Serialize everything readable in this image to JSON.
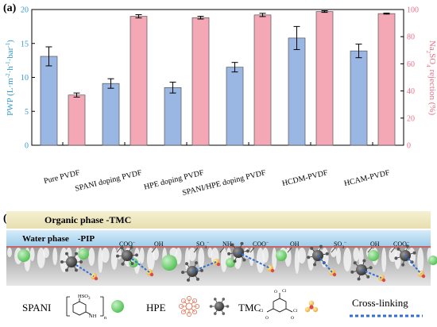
{
  "panel_a": {
    "label": "(a)",
    "chart_data": {
      "type": "bar",
      "categories": [
        "Pure PVDF",
        "SPANI doping PVDF",
        "HPE doping PVDF",
        "SPANI/HPE doping PVDF",
        "HCDM-PVDF",
        "HCAM-PVDF"
      ],
      "y_left": {
        "label_parts": [
          "PWP (L·m",
          "-2",
          "·h",
          "-1",
          "·bar",
          "-1",
          ")"
        ],
        "ylim": [
          0,
          20
        ],
        "ticks": [
          0,
          5,
          10,
          15,
          20
        ],
        "color": "#3399cc"
      },
      "y_right": {
        "label_parts": [
          "Na",
          "2",
          "SO",
          "4",
          " rejection (%)"
        ],
        "ylim": [
          0,
          100
        ],
        "ticks": [
          0,
          20,
          40,
          60,
          80,
          100
        ],
        "color": "#e8708a"
      },
      "series": [
        {
          "axis": "left",
          "values": [
            13.1,
            9.1,
            8.5,
            11.5,
            15.8,
            13.9
          ],
          "errors": [
            1.4,
            0.7,
            0.8,
            0.7,
            1.7,
            1.0
          ],
          "color": "#9ab7e3"
        },
        {
          "axis": "right",
          "values": [
            37,
            95,
            94,
            96,
            98.5,
            97
          ],
          "errors": [
            1.5,
            1.2,
            1.0,
            1.2,
            0.6,
            0.4
          ],
          "color": "#f4a7b4"
        }
      ]
    }
  },
  "panel_b": {
    "label": "(b)",
    "organic_phase": "Organic phase -TMC",
    "water_phase": "Water phase    -PIP",
    "groups": [
      {
        "text": "COO",
        "sup": "−"
      },
      {
        "text": "OH",
        "sup": ""
      },
      {
        "text": "SO",
        "sup": "−",
        "sub": "3"
      },
      {
        "text": "NH",
        "sup": ""
      },
      {
        "text": "COO",
        "sup": "−"
      },
      {
        "text": "OH",
        "sup": ""
      },
      {
        "text": "SO",
        "sup": "−",
        "sub": "3"
      },
      {
        "text": "OH",
        "sup": ""
      },
      {
        "text": "COO",
        "sup": "−"
      }
    ],
    "legend": {
      "spani": "SPANI",
      "spani_formula": {
        "so3h": "HSO",
        "so3h_sub": "3",
        "nh": "NH",
        "n": "n"
      },
      "hpe": "HPE",
      "tmc": "TMC",
      "tmc_atoms": {
        "cl": "Cl",
        "o": "O"
      },
      "crosslink": "Cross-linking"
    },
    "colors": {
      "green": "#7cd37c",
      "gray": "#555555",
      "yellow": "#f5c542",
      "membrane": "#c8c8c8",
      "organic": "#efe8c4",
      "water": "#b9dcf2",
      "crosslink": "#2f6fd6"
    }
  }
}
